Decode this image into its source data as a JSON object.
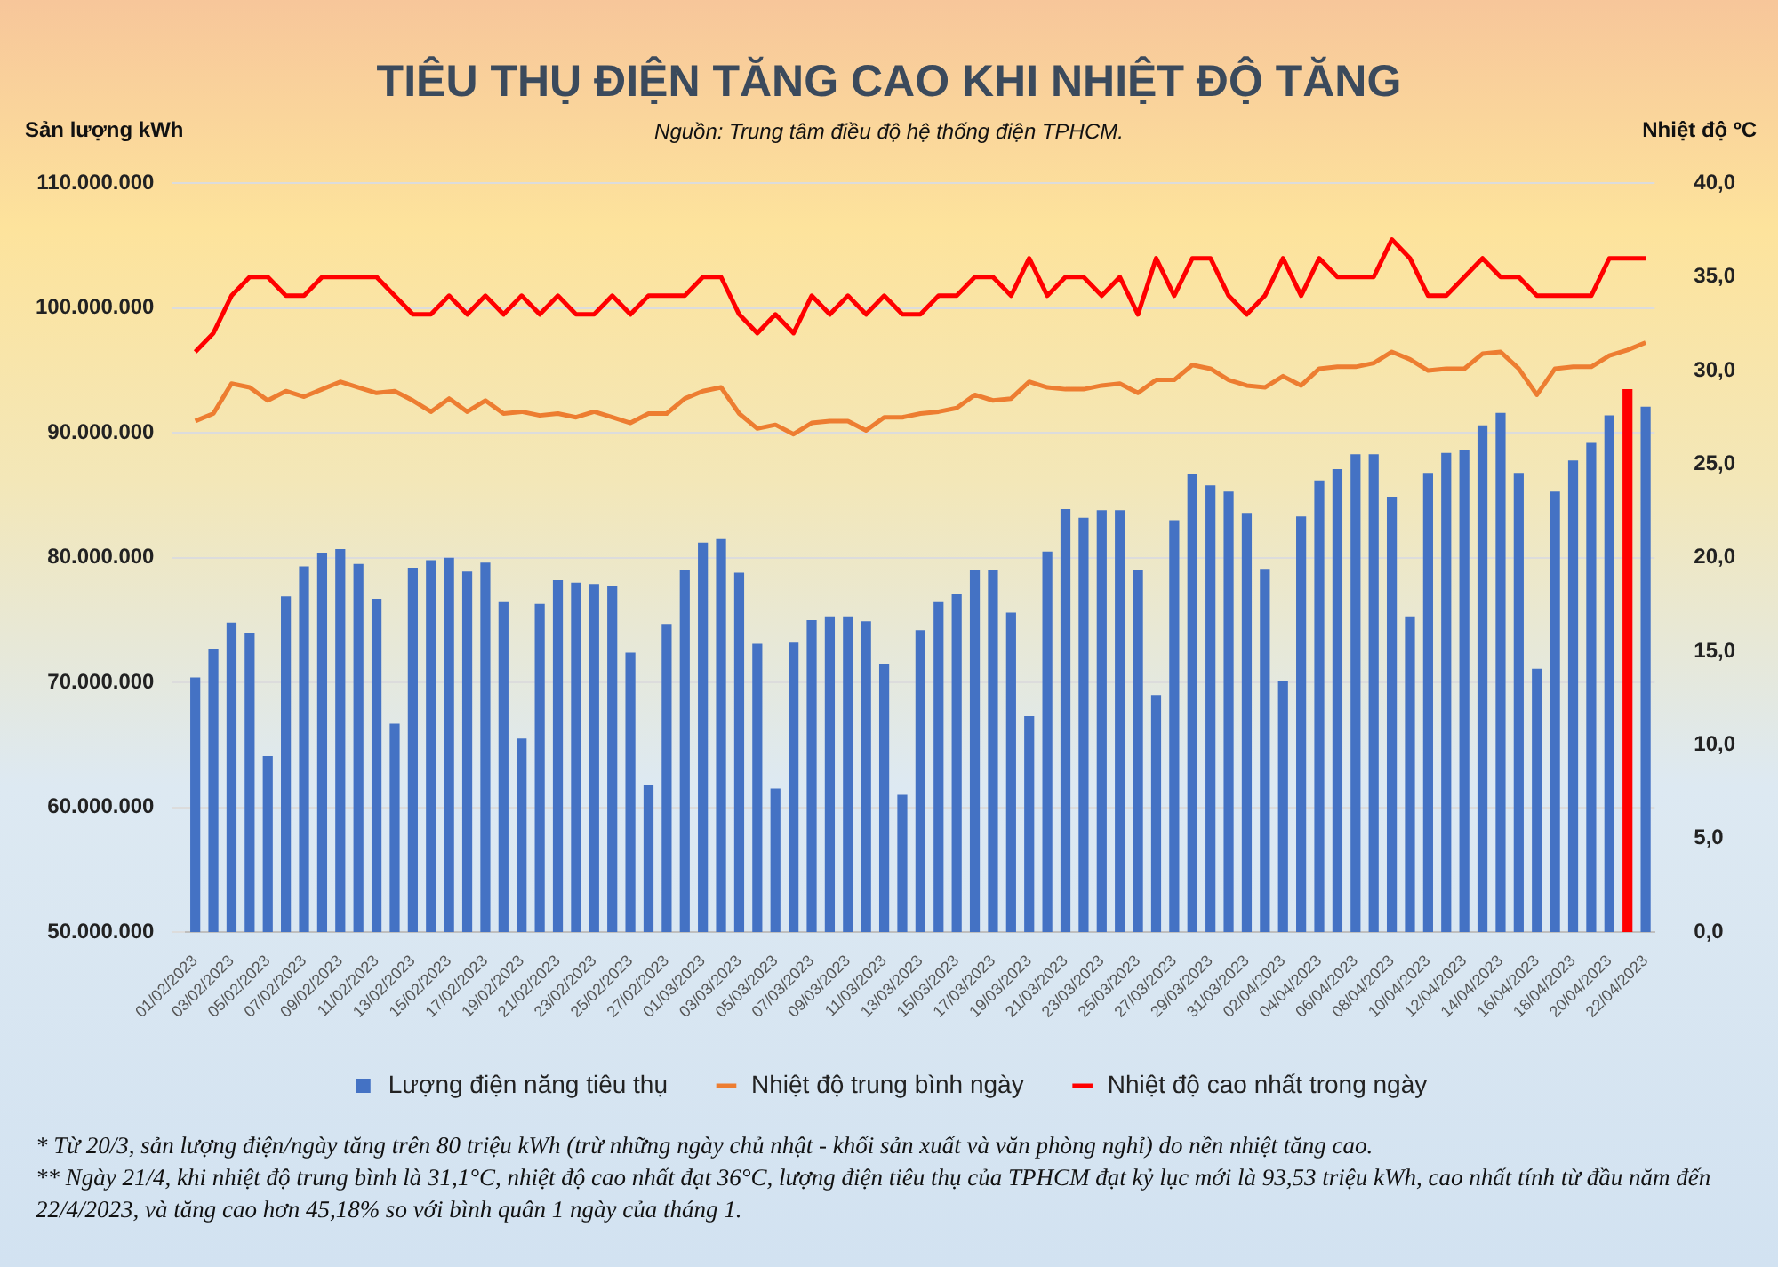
{
  "chart_data": {
    "type": "bar",
    "title": "TIÊU THỤ ĐIỆN TĂNG CAO KHI NHIỆT ĐỘ TĂNG",
    "subtitle": "Nguồn: Trung tâm điều độ hệ thống điện TPHCM.",
    "ylabel": "Sản lượng kWh",
    "y2label": "Nhiệt độ ºC",
    "categories": [
      "01/02/2023",
      null,
      "03/02/2023",
      null,
      "05/02/2023",
      null,
      "07/02/2023",
      null,
      "09/02/2023",
      null,
      "11/02/2023",
      null,
      "13/02/2023",
      null,
      "15/02/2023",
      null,
      "17/02/2023",
      null,
      "19/02/2023",
      null,
      "21/02/2023",
      null,
      "23/02/2023",
      null,
      "25/02/2023",
      null,
      "27/02/2023",
      null,
      "01/03/2023",
      null,
      "03/03/2023",
      null,
      "05/03/2023",
      null,
      "07/03/2023",
      null,
      "09/03/2023",
      null,
      "11/03/2023",
      null,
      "13/03/2023",
      null,
      "15/03/2023",
      null,
      "17/03/2023",
      null,
      "19/03/2023",
      null,
      "21/03/2023",
      null,
      "23/03/2023",
      null,
      "25/03/2023",
      null,
      "27/03/2023",
      null,
      "29/03/2023",
      null,
      "31/03/2023",
      null,
      "02/04/2023",
      null,
      "04/04/2023",
      null,
      "06/04/2023",
      null,
      "08/04/2023",
      null,
      "10/04/2023",
      null,
      "12/04/2023",
      null,
      "14/04/2023",
      null,
      "16/04/2023",
      null,
      "18/04/2023",
      null,
      "20/04/2023",
      null,
      "22/04/2023"
    ],
    "series": [
      {
        "name": "Lượng điện năng tiêu thụ",
        "color": "#4472c4",
        "values": [
          70400000,
          72700000,
          74800000,
          74000000,
          64100000,
          76900000,
          79300000,
          80400000,
          80700000,
          79500000,
          76700000,
          66700000,
          79200000,
          79800000,
          80000000,
          78900000,
          79600000,
          76500000,
          65500000,
          76300000,
          78200000,
          78000000,
          77900000,
          77700000,
          72400000,
          61800000,
          74700000,
          79000000,
          81200000,
          81500000,
          78800000,
          73100000,
          61500000,
          73200000,
          75000000,
          75300000,
          75300000,
          74900000,
          71500000,
          61000000,
          74200000,
          76500000,
          77100000,
          79000000,
          79000000,
          75600000,
          67300000,
          80500000,
          83900000,
          83200000,
          83800000,
          83800000,
          79000000,
          69000000,
          83000000,
          86700000,
          85800000,
          85300000,
          83600000,
          79100000,
          70100000,
          83300000,
          86200000,
          87100000,
          88300000,
          88300000,
          84900000,
          75300000,
          86800000,
          88400000,
          88600000,
          90600000,
          91600000,
          86800000,
          71100000,
          85300000,
          87800000,
          89200000,
          91400000,
          93500000,
          92100000
        ],
        "colors": [
          "#4472c4",
          "#4472c4",
          "#4472c4",
          "#4472c4",
          "#4472c4",
          "#4472c4",
          "#4472c4",
          "#4472c4",
          "#4472c4",
          "#4472c4",
          "#4472c4",
          "#4472c4",
          "#4472c4",
          "#4472c4",
          "#4472c4",
          "#4472c4",
          "#4472c4",
          "#4472c4",
          "#4472c4",
          "#4472c4",
          "#4472c4",
          "#4472c4",
          "#4472c4",
          "#4472c4",
          "#4472c4",
          "#4472c4",
          "#4472c4",
          "#4472c4",
          "#4472c4",
          "#4472c4",
          "#4472c4",
          "#4472c4",
          "#4472c4",
          "#4472c4",
          "#4472c4",
          "#4472c4",
          "#4472c4",
          "#4472c4",
          "#4472c4",
          "#4472c4",
          "#4472c4",
          "#4472c4",
          "#4472c4",
          "#4472c4",
          "#4472c4",
          "#4472c4",
          "#4472c4",
          "#4472c4",
          "#4472c4",
          "#4472c4",
          "#4472c4",
          "#4472c4",
          "#4472c4",
          "#4472c4",
          "#4472c4",
          "#4472c4",
          "#4472c4",
          "#4472c4",
          "#4472c4",
          "#4472c4",
          "#4472c4",
          "#4472c4",
          "#4472c4",
          "#4472c4",
          "#4472c4",
          "#4472c4",
          "#4472c4",
          "#4472c4",
          "#4472c4",
          "#4472c4",
          "#4472c4",
          "#4472c4",
          "#4472c4",
          "#4472c4",
          "#4472c4",
          "#4472c4",
          "#4472c4",
          "#4472c4",
          "#4472c4",
          "#ff0000",
          "#4472c4"
        ]
      },
      {
        "name": "Nhiệt độ trung bình ngày",
        "type": "line",
        "axis": "y2",
        "color": "#ed7d31",
        "values": [
          27.3,
          27.7,
          29.3,
          29.1,
          28.4,
          28.9,
          28.6,
          29.0,
          29.4,
          29.1,
          28.8,
          28.9,
          28.4,
          27.8,
          28.5,
          27.8,
          28.4,
          27.7,
          27.8,
          27.6,
          27.7,
          27.5,
          27.8,
          27.5,
          27.2,
          27.7,
          27.7,
          28.5,
          28.9,
          29.1,
          27.7,
          26.9,
          27.1,
          26.6,
          27.2,
          27.3,
          27.3,
          26.8,
          27.5,
          27.5,
          27.7,
          27.8,
          28.0,
          28.7,
          28.4,
          28.5,
          29.4,
          29.1,
          29.0,
          29.0,
          29.2,
          29.3,
          28.8,
          29.5,
          29.5,
          30.3,
          30.1,
          29.5,
          29.2,
          29.1,
          29.7,
          29.2,
          30.1,
          30.2,
          30.2,
          30.4,
          31.0,
          30.6,
          30.0,
          30.1,
          30.1,
          30.9,
          31.0,
          30.1,
          28.7,
          30.1,
          30.2,
          30.2,
          30.8,
          31.1,
          31.5
        ]
      },
      {
        "name": "Nhiệt độ cao nhất trong ngày",
        "type": "line",
        "axis": "y2",
        "color": "#ff0000",
        "values": [
          31,
          32,
          34,
          35,
          35,
          34,
          34,
          35,
          35,
          35,
          35,
          34,
          33,
          33,
          34,
          33,
          34,
          33,
          34,
          33,
          34,
          33,
          33,
          34,
          33,
          34,
          34,
          34,
          35,
          35,
          33,
          32,
          33,
          32,
          34,
          33,
          34,
          33,
          34,
          33,
          33,
          34,
          34,
          35,
          35,
          34,
          36,
          34,
          35,
          35,
          34,
          35,
          33,
          36,
          34,
          36,
          36,
          34,
          33,
          34,
          36,
          34,
          36,
          35,
          35,
          35,
          37,
          36,
          34,
          34,
          35,
          36,
          35,
          35,
          34,
          34,
          34,
          34,
          36,
          36,
          36
        ]
      }
    ],
    "ylim": [
      50000000,
      110000000
    ],
    "yticks": [
      {
        "value": 50000000,
        "label": "50.000.000"
      },
      {
        "value": 60000000,
        "label": "60.000.000"
      },
      {
        "value": 70000000,
        "label": "70.000.000"
      },
      {
        "value": 80000000,
        "label": "80.000.000"
      },
      {
        "value": 90000000,
        "label": "90.000.000"
      },
      {
        "value": 100000000,
        "label": "100.000.000"
      },
      {
        "value": 110000000,
        "label": "110.000.000"
      }
    ],
    "y2lim": [
      0,
      40
    ],
    "y2ticks": [
      {
        "value": 0,
        "label": "0,0"
      },
      {
        "value": 5,
        "label": "5,0"
      },
      {
        "value": 10,
        "label": "10,0"
      },
      {
        "value": 15,
        "label": "15,0"
      },
      {
        "value": 20,
        "label": "20,0"
      },
      {
        "value": 25,
        "label": "25,0"
      },
      {
        "value": 30,
        "label": "30,0"
      },
      {
        "value": 35,
        "label": "35,0"
      },
      {
        "value": 40,
        "label": "40,0"
      }
    ],
    "grid": "y",
    "legend": "bottom",
    "marker": "none",
    "line_style": "solid",
    "annotations": [
      "* Từ 20/3, sản lượng điện/ngày tăng trên 80 triệu kWh (trừ những ngày chủ nhật - khối sản xuất và văn phòng nghỉ) do nền nhiệt tăng cao.",
      "** Ngày 21/4, khi nhiệt độ trung bình là 31,1°C, nhiệt độ cao nhất đạt 36°C, lượng điện tiêu thụ của TPHCM đạt kỷ lục mới là 93,53 triệu kWh, cao nhất tính từ đầu năm đến 22/4/2023, và tăng cao hơn 45,18% so với bình quân 1 ngày của tháng 1."
    ]
  }
}
